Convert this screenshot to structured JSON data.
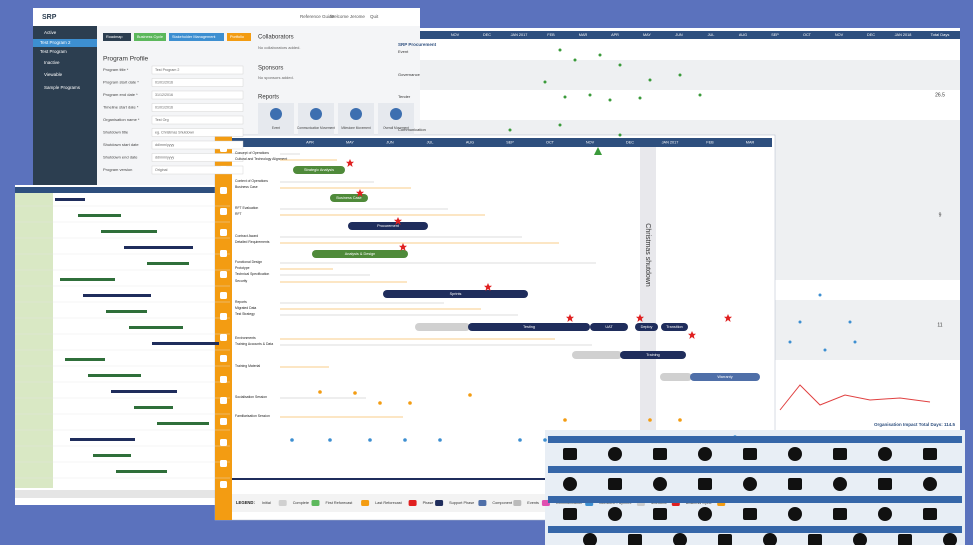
{
  "profile": {
    "header_links": [
      "Reference Guide",
      "Welcome Jerome",
      "Quit"
    ],
    "nav": [
      "Active",
      "Test Program 2",
      "Test Program",
      "Inactive",
      "Viewable",
      "Sample Programs"
    ],
    "tabs": [
      "Roadmap",
      "Business Cycle",
      "Stakeholder Management",
      "Portfolio"
    ],
    "title": "Program Profile",
    "fields": [
      {
        "label": "Program title *",
        "value": "Test Program 2"
      },
      {
        "label": "Program start date *",
        "value": "01/01/2016"
      },
      {
        "label": "Program end date *",
        "value": "31/12/2016"
      },
      {
        "label": "Timeline start date *",
        "value": "01/01/2016"
      },
      {
        "label": "Organisation name *",
        "value": "Test Org"
      },
      {
        "label": "Shutdown title",
        "value": "eg. Christmas Shutdown"
      },
      {
        "label": "Shutdown start date",
        "value": "dd/mm/yyyy"
      },
      {
        "label": "Shutdown end date",
        "value": "dd/mm/yyyy"
      },
      {
        "label": "Program version",
        "value": "Original"
      }
    ],
    "collaborators": {
      "title": "Collaborators",
      "empty": "No collaborators added."
    },
    "sponsors": {
      "title": "Sponsors",
      "empty": "No sponsors added."
    },
    "reports": {
      "title": "Reports",
      "items": [
        "Event",
        "Communication Movement",
        "Milestone Movement",
        "Overall Movement"
      ]
    }
  },
  "timeline": {
    "title": "SRP Procurement",
    "months": [
      "NOV",
      "DEC",
      "JAN 2017",
      "FEB",
      "MAR",
      "APR",
      "MAY",
      "JUN",
      "JUL",
      "AUG",
      "SEP",
      "OCT",
      "NOV",
      "DEC",
      "JAN 2018"
    ],
    "total_header": "Total Days",
    "rows": [
      "Event",
      "Governance",
      "Tender",
      "Communication"
    ],
    "totals": [
      26.5,
      9,
      11
    ],
    "footer": "Organisation Impact Total Days: 114.5"
  },
  "roadmap": {
    "months": [
      "APR",
      "MAY",
      "JUN",
      "JUL",
      "AUG",
      "SEP",
      "OCT",
      "NOV",
      "DEC",
      "JAN 2017",
      "FEB",
      "MAR"
    ],
    "rows": [
      "Concept of Operations",
      "Cultural and Technology Alignment",
      "Context of Operations",
      "Business Case",
      "RFT Evaluation",
      "RFT",
      "Contract Award",
      "Detailed Requirements",
      "Functional Design",
      "Prototype",
      "Technical Specification",
      "Security",
      "Reports",
      "Migrated Data",
      "Test Strategy",
      "Environments",
      "Training Accounts & Data",
      "Training Material",
      "Socialisation Session",
      "Familiarisation Session"
    ],
    "bars": [
      "Strategic Analysis",
      "Business Case",
      "Procurement",
      "Analysis & Design",
      "Sprints",
      "Testing",
      "UAT",
      "Deploy",
      "Transition",
      "Training",
      "Warranty"
    ],
    "shutdown": "Christmas shutdown",
    "legend_title": "LEGEND:",
    "legend": [
      "Initial",
      "Complete",
      "First Reforecast",
      "Last Reforecast",
      "Phase",
      "Support Phase",
      "Component",
      "Events",
      "Communication",
      "Milestone Payment",
      "Milestone",
      "Business Cycle"
    ]
  }
}
